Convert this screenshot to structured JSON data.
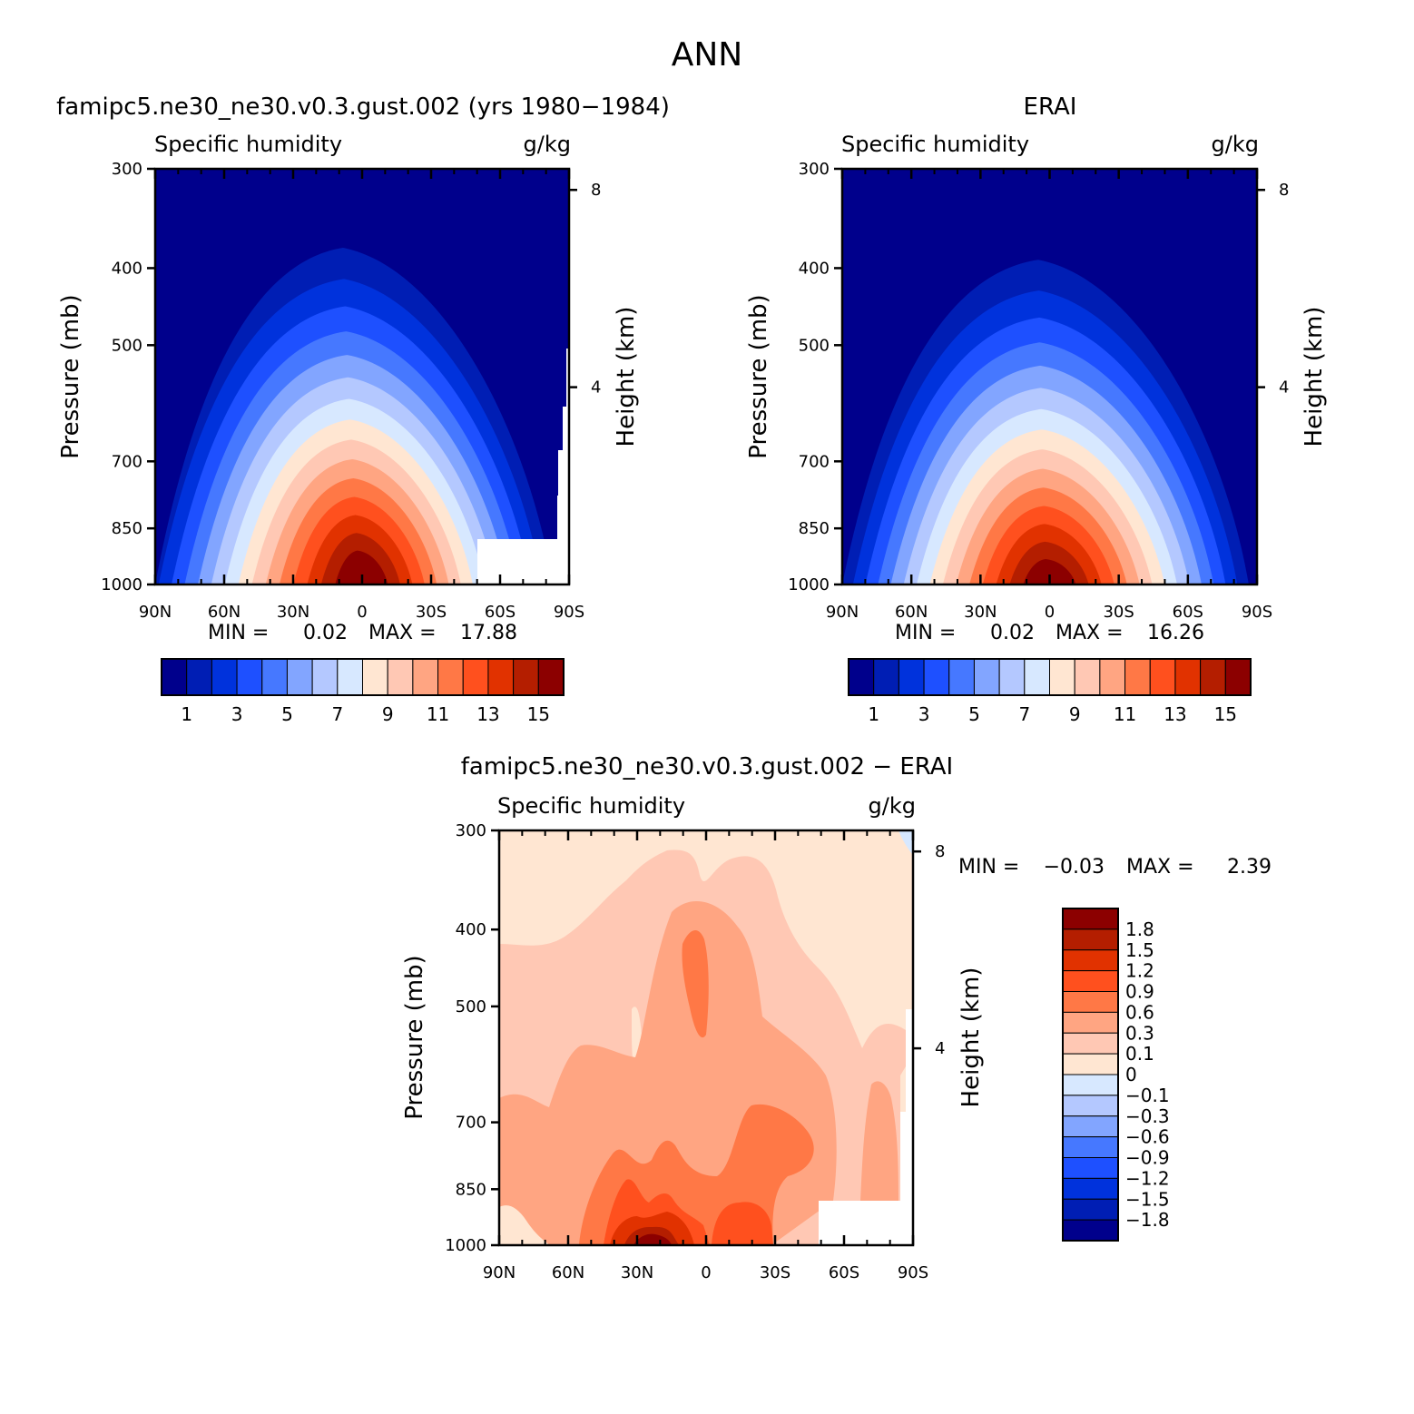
{
  "figure_title": "ANN",
  "colors": {
    "abs_levels": [
      "#00008c",
      "#001eb4",
      "#0032dc",
      "#1e50ff",
      "#4678ff",
      "#82a5ff",
      "#b4c8ff",
      "#d7e8ff",
      "#ffe6d2",
      "#ffc8b4",
      "#ffa582",
      "#ff7846",
      "#ff501e",
      "#e13200",
      "#b41e00",
      "#8c0000"
    ],
    "diff_levels": [
      "#00008c",
      "#001eb4",
      "#0032dc",
      "#1e50ff",
      "#4678ff",
      "#82a5ff",
      "#b4c8ff",
      "#d7e8ff",
      "#ffe6d2",
      "#ffc8b4",
      "#ffa582",
      "#ff7846",
      "#ff501e",
      "#e13200",
      "#b41e00",
      "#8c0000"
    ]
  },
  "chart_data": [
    {
      "type": "heatmap",
      "title": "famipc5.ne30_ne30.v0.3.gust.002 (yrs 1980−1984)",
      "subtitle": "Specific humidity",
      "units": "g/kg",
      "ylabel": "Pressure (mb)",
      "y2label": "Height (km)",
      "x_ticks": [
        "90N",
        "60N",
        "30N",
        "0",
        "30S",
        "60S",
        "90S"
      ],
      "y_ticks": [
        "300",
        "400",
        "500",
        "700",
        "850",
        "1000"
      ],
      "y2_ticks": [
        "8",
        "4"
      ],
      "min_label": "MIN =",
      "min_value": "0.02",
      "max_label": "MAX =",
      "max_value": "17.88",
      "colorbar_labels": [
        "1",
        "3",
        "5",
        "7",
        "9",
        "11",
        "13",
        "15"
      ],
      "peak": 17.88
    },
    {
      "type": "heatmap",
      "title": "ERAI",
      "subtitle": "Specific humidity",
      "units": "g/kg",
      "ylabel": "Pressure (mb)",
      "y2label": "Height (km)",
      "x_ticks": [
        "90N",
        "60N",
        "30N",
        "0",
        "30S",
        "60S",
        "90S"
      ],
      "y_ticks": [
        "300",
        "400",
        "500",
        "700",
        "850",
        "1000"
      ],
      "y2_ticks": [
        "8",
        "4"
      ],
      "min_label": "MIN =",
      "min_value": "0.02",
      "max_label": "MAX =",
      "max_value": "16.26",
      "colorbar_labels": [
        "1",
        "3",
        "5",
        "7",
        "9",
        "11",
        "13",
        "15"
      ],
      "peak": 16.26
    },
    {
      "type": "heatmap",
      "title": "famipc5.ne30_ne30.v0.3.gust.002 − ERAI",
      "subtitle": "Specific humidity",
      "units": "g/kg",
      "ylabel": "Pressure (mb)",
      "y2label": "Height (km)",
      "x_ticks": [
        "90N",
        "60N",
        "30N",
        "0",
        "30S",
        "60S",
        "90S"
      ],
      "y_ticks": [
        "300",
        "400",
        "500",
        "700",
        "850",
        "1000"
      ],
      "y2_ticks": [
        "8",
        "4"
      ],
      "min_label": "MIN =",
      "min_value": "−0.03",
      "max_label": "MAX =",
      "max_value": "2.39",
      "colorbar_labels": [
        "1.8",
        "1.5",
        "1.2",
        "0.9",
        "0.6",
        "0.3",
        "0.1",
        "0",
        "−0.1",
        "−0.3",
        "−0.6",
        "−0.9",
        "−1.2",
        "−1.5",
        "−1.8"
      ]
    }
  ]
}
